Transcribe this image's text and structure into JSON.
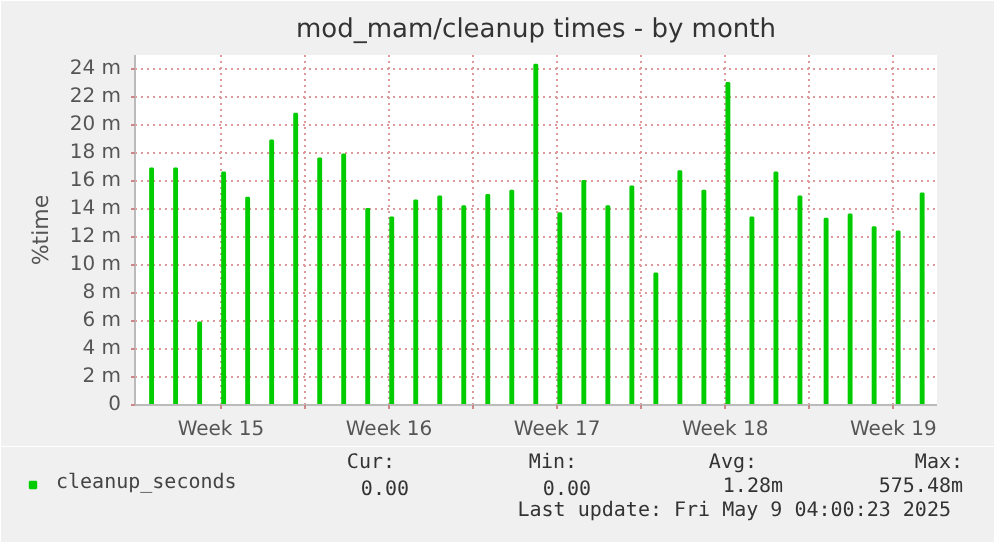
{
  "chart_data": {
    "type": "bar",
    "title": "mod_mam/cleanup times - by month",
    "ylabel": "%time",
    "x": [
      "2025-04-07T14:40",
      "2025-04-08T14:40",
      "2025-04-09T14:40",
      "2025-04-10T14:40",
      "2025-04-11T14:40",
      "2025-04-12T14:40",
      "2025-04-13T14:40",
      "2025-04-14T14:40",
      "2025-04-15T14:40",
      "2025-04-16T14:40",
      "2025-04-17T14:40",
      "2025-04-18T14:40",
      "2025-04-19T14:40",
      "2025-04-20T14:40",
      "2025-04-21T14:40",
      "2025-04-22T14:40",
      "2025-04-23T14:40",
      "2025-04-24T14:40",
      "2025-04-25T14:40",
      "2025-04-26T14:40",
      "2025-04-27T14:40",
      "2025-04-28T14:40",
      "2025-04-29T14:40",
      "2025-04-30T14:40",
      "2025-05-01T14:40",
      "2025-05-02T14:40",
      "2025-05-03T14:40",
      "2025-05-04T14:40",
      "2025-05-05T16:50",
      "2025-05-06T16:50",
      "2025-05-07T16:50",
      "2025-05-08T16:50",
      "2025-05-09T16:50"
    ],
    "series": [
      {
        "name": "cleanup_seconds",
        "color": "#00cc00",
        "values": [
          16.9,
          16.9,
          5.9,
          16.6,
          14.8,
          18.9,
          20.8,
          17.6,
          17.9,
          14.0,
          13.4,
          14.6,
          14.9,
          14.2,
          15.0,
          15.3,
          24.3,
          13.7,
          16.0,
          14.2,
          15.6,
          9.4,
          16.7,
          15.3,
          23.0,
          13.4,
          16.6,
          14.9,
          13.3,
          13.6,
          12.7,
          12.4,
          15.1
        ]
      }
    ],
    "xlim": [
      "2025-04-06T22:05",
      "2025-05-10T07:40"
    ],
    "xticks": [
      {
        "value": "2025-04-10T12:00",
        "label": "Week 15"
      },
      {
        "value": "2025-04-14",
        "label": null
      },
      {
        "value": "2025-04-17T12:00",
        "label": "Week 16"
      },
      {
        "value": "2025-04-21",
        "label": null
      },
      {
        "value": "2025-04-24T12:00",
        "label": "Week 17"
      },
      {
        "value": "2025-04-28",
        "label": null
      },
      {
        "value": "2025-05-01T12:00",
        "label": "Week 18"
      },
      {
        "value": "2025-05-05",
        "label": null
      },
      {
        "value": "2025-05-08T12:00",
        "label": "Week 19"
      }
    ],
    "ylim": [
      0,
      25
    ],
    "yticks": [
      0,
      {
        "value": 2,
        "label": "2 m"
      },
      {
        "value": 4,
        "label": "4 m"
      },
      {
        "value": 6,
        "label": "6 m"
      },
      {
        "value": 8,
        "label": "8 m"
      },
      {
        "value": 10,
        "label": "10 m"
      },
      {
        "value": 12,
        "label": "12 m"
      },
      {
        "value": 14,
        "label": "14 m"
      },
      {
        "value": 16,
        "label": "16 m"
      },
      {
        "value": 18,
        "label": "18 m"
      },
      {
        "value": 20,
        "label": "20 m"
      },
      {
        "value": 22,
        "label": "22 m"
      },
      {
        "value": 24,
        "label": "24 m"
      }
    ],
    "grid": true,
    "legend": "bottom left",
    "annotations": [
      "Cur:",
      "Min:",
      "Avg:",
      "Max:",
      "0.00",
      "0.00",
      "1.28m",
      "575.48m",
      "Last update: Fri May  9 04:00:23 2025"
    ]
  }
}
